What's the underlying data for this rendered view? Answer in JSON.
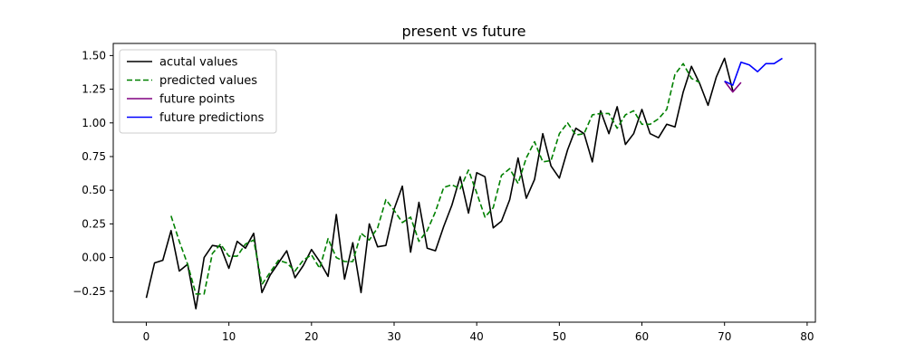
{
  "chart_data": {
    "type": "line",
    "title": "present vs future",
    "xlabel": "",
    "ylabel": "",
    "xlim": [
      -4,
      81
    ],
    "ylim": [
      -0.48,
      1.59
    ],
    "x_ticks": [
      0,
      10,
      20,
      30,
      40,
      50,
      60,
      70,
      80
    ],
    "x_tick_labels": [
      "0",
      "10",
      "20",
      "30",
      "40",
      "50",
      "60",
      "70",
      "80"
    ],
    "y_ticks": [
      -0.25,
      0.0,
      0.25,
      0.5,
      0.75,
      1.0,
      1.25,
      1.5
    ],
    "y_tick_labels": [
      "−0.25",
      "0.00",
      "0.25",
      "0.50",
      "0.75",
      "1.00",
      "1.25",
      "1.50"
    ],
    "grid": false,
    "legend_position": "top-left",
    "series": [
      {
        "name": "acutal values",
        "color": "#000000",
        "style": "solid",
        "x_start": 0,
        "values": [
          -0.3,
          -0.04,
          -0.02,
          0.2,
          -0.1,
          -0.05,
          -0.38,
          0.0,
          0.09,
          0.08,
          -0.08,
          0.12,
          0.07,
          0.18,
          -0.26,
          -0.13,
          -0.04,
          0.05,
          -0.15,
          -0.06,
          0.06,
          -0.03,
          -0.14,
          0.32,
          -0.16,
          0.11,
          -0.26,
          0.25,
          0.08,
          0.09,
          0.36,
          0.53,
          0.04,
          0.41,
          0.07,
          0.05,
          0.23,
          0.39,
          0.6,
          0.33,
          0.63,
          0.6,
          0.22,
          0.27,
          0.43,
          0.74,
          0.44,
          0.58,
          0.92,
          0.68,
          0.59,
          0.8,
          0.96,
          0.92,
          0.71,
          1.09,
          0.92,
          1.12,
          0.84,
          0.92,
          1.1,
          0.92,
          0.89,
          0.99,
          0.97,
          1.23,
          1.42,
          1.29,
          1.13,
          1.34,
          1.48,
          1.24
        ]
      },
      {
        "name": "predicted values",
        "color": "#008000",
        "style": "dashed",
        "x_start": 3,
        "values": [
          0.31,
          0.12,
          -0.05,
          -0.27,
          -0.27,
          0.03,
          0.1,
          0.01,
          0.01,
          0.1,
          0.13,
          -0.2,
          -0.11,
          -0.02,
          -0.04,
          -0.1,
          -0.02,
          0.02,
          -0.08,
          0.14,
          0.0,
          -0.03,
          -0.03,
          0.18,
          0.13,
          0.22,
          0.43,
          0.35,
          0.26,
          0.3,
          0.12,
          0.2,
          0.34,
          0.52,
          0.54,
          0.51,
          0.65,
          0.48,
          0.3,
          0.37,
          0.61,
          0.66,
          0.55,
          0.74,
          0.86,
          0.71,
          0.72,
          0.92,
          1.0,
          0.91,
          0.92,
          1.06,
          1.07,
          1.07,
          0.96,
          1.06,
          1.09,
          0.99,
          0.99,
          1.03,
          1.1,
          1.36,
          1.44,
          1.33,
          1.3
        ]
      },
      {
        "name": "future points",
        "color": "#800080",
        "style": "solid",
        "x_start": 70,
        "values": [
          1.31,
          1.23,
          1.3
        ]
      },
      {
        "name": "future predictions",
        "color": "#0000ff",
        "style": "solid",
        "x_start": 70,
        "values": [
          1.31,
          1.28,
          1.45,
          1.43,
          1.38,
          1.44,
          1.44,
          1.48
        ]
      }
    ]
  }
}
